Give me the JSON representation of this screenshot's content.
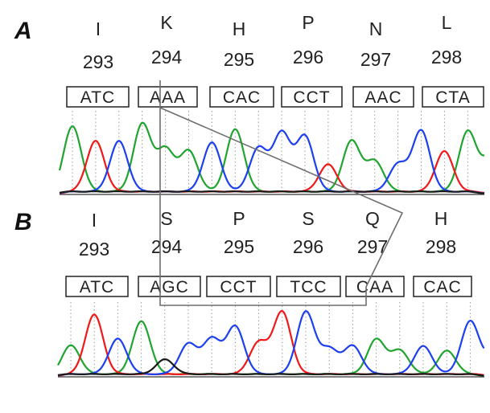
{
  "colors": {
    "A": "#1fa52f",
    "C": "#1c3ff0",
    "G": "#1a1a1a",
    "T": "#f21818"
  },
  "panels": [
    {
      "label": "A",
      "codons": [
        {
          "aa": "I",
          "pos": "293",
          "codon": "ATC"
        },
        {
          "aa": "K",
          "pos": "294",
          "codon": "AAA"
        },
        {
          "aa": "H",
          "pos": "295",
          "codon": "CAC"
        },
        {
          "aa": "P",
          "pos": "296",
          "codon": "CCT"
        },
        {
          "aa": "N",
          "pos": "297",
          "codon": "AAC"
        },
        {
          "aa": "L",
          "pos": "298",
          "codon": "CTA"
        }
      ],
      "sequence": "ATCAAACACCCTAACCTA"
    },
    {
      "label": "B",
      "codons": [
        {
          "aa": "I",
          "pos": "293",
          "codon": "ATC"
        },
        {
          "aa": "S",
          "pos": "294",
          "codon": "AGC"
        },
        {
          "aa": "P",
          "pos": "295",
          "codon": "CCT"
        },
        {
          "aa": "S",
          "pos": "296",
          "codon": "TCC"
        },
        {
          "aa": "Q",
          "pos": "297",
          "codon": "CAA"
        },
        {
          "aa": "H",
          "pos": "298",
          "codon": "CAC"
        }
      ],
      "sequence": "ATCAGCCCTTCCCAACAC"
    }
  ]
}
